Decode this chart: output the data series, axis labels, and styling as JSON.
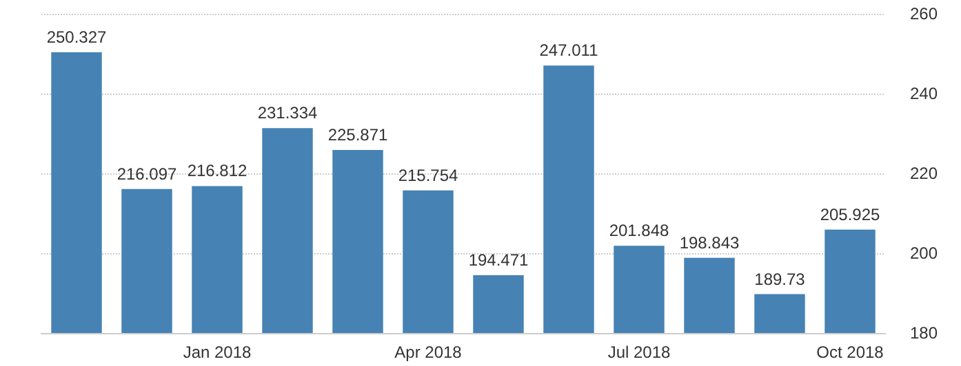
{
  "chart_data": {
    "type": "bar",
    "categories": [
      null,
      null,
      "Jan 2018",
      null,
      null,
      "Apr 2018",
      null,
      null,
      "Jul 2018",
      null,
      null,
      "Oct 2018"
    ],
    "values": [
      250.327,
      216.097,
      216.812,
      231.334,
      225.871,
      215.754,
      194.471,
      247.011,
      201.848,
      198.843,
      189.73,
      205.925
    ],
    "color": "#4682b4",
    "ylim": [
      180,
      260
    ],
    "yticks": [
      180,
      200,
      220,
      240,
      260
    ],
    "grid": "y",
    "data_labels": true
  }
}
